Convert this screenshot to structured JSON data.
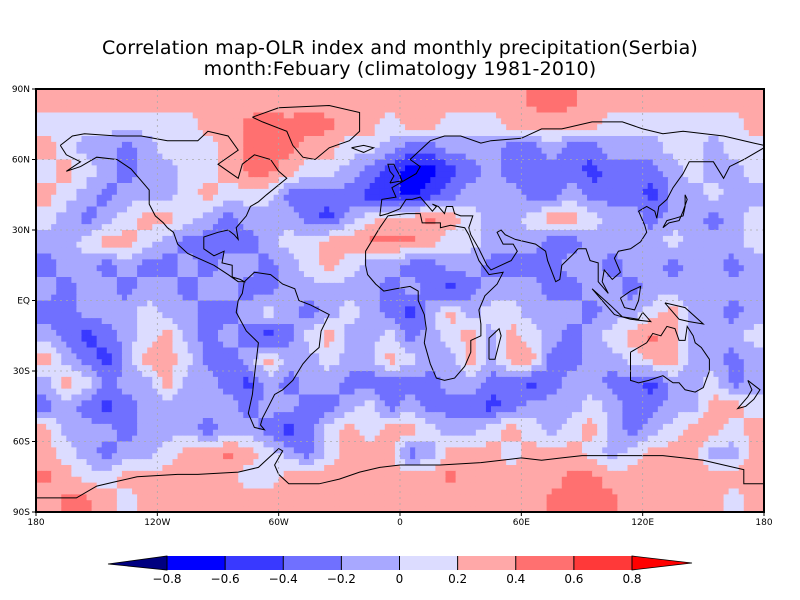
{
  "title": {
    "line1": "Correlation map-OLR index and monthly precipitation(Serbia)",
    "line2": "month:Febuary (climatology 1981-2010)"
  },
  "map": {
    "projection": "cylindrical equidistant",
    "lon_range": [
      -180,
      180
    ],
    "lat_range": [
      -90,
      90
    ],
    "y_ticks": [
      {
        "value": 90,
        "label": "90N"
      },
      {
        "value": 60,
        "label": "60N"
      },
      {
        "value": 30,
        "label": "30N"
      },
      {
        "value": 0,
        "label": "EQ"
      },
      {
        "value": -30,
        "label": "30S"
      },
      {
        "value": -60,
        "label": "60S"
      },
      {
        "value": -90,
        "label": "90S"
      }
    ],
    "x_ticks": [
      {
        "value": -180,
        "label": "180"
      },
      {
        "value": -120,
        "label": "120W"
      },
      {
        "value": -60,
        "label": "60W"
      },
      {
        "value": 0,
        "label": "0"
      },
      {
        "value": 60,
        "label": "60E"
      },
      {
        "value": 120,
        "label": "120E"
      },
      {
        "value": 180,
        "label": "180"
      }
    ],
    "gridlines": "dashed light gray",
    "field_lats": [
      85,
      75,
      65,
      55,
      45,
      35,
      25,
      15,
      5,
      -5,
      -15,
      -25,
      -35,
      -45,
      -55,
      -65,
      -75,
      -85
    ],
    "field_lons": [
      -175,
      -165,
      -155,
      -145,
      -135,
      -125,
      -115,
      -105,
      -95,
      -85,
      -75,
      -65,
      -55,
      -45,
      -35,
      -25,
      -15,
      -5,
      5,
      15,
      25,
      35,
      45,
      55,
      65,
      75,
      85,
      95,
      105,
      115,
      125,
      135,
      145,
      155,
      165,
      175
    ],
    "field_values": [
      [
        0.3,
        0.3,
        0.3,
        0.3,
        0.3,
        0.3,
        0.3,
        0.3,
        0.3,
        0.3,
        0.3,
        0.3,
        0.3,
        0.3,
        0.3,
        0.3,
        0.3,
        0.3,
        0.3,
        0.3,
        0.3,
        0.3,
        0.3,
        0.3,
        0.45,
        0.5,
        0.45,
        0.3,
        0.3,
        0.3,
        0.3,
        0.3,
        0.3,
        0.3,
        0.3,
        0.3
      ],
      [
        0.1,
        0.1,
        0.1,
        0.1,
        0.1,
        0.1,
        0.1,
        0.1,
        0.3,
        0.3,
        0.45,
        0.5,
        0.45,
        0.5,
        0.45,
        0.3,
        0.3,
        0.1,
        0.3,
        0.3,
        0.1,
        0.1,
        0.1,
        0.3,
        0.3,
        0.3,
        0.3,
        0.3,
        0.1,
        0.1,
        0.1,
        0.1,
        0.1,
        0.1,
        0.1,
        0.3
      ],
      [
        0.3,
        0.1,
        -0.1,
        -0.1,
        -0.3,
        -0.1,
        0.1,
        0.1,
        0.1,
        0.3,
        0.45,
        0.5,
        0.45,
        0.3,
        0.3,
        0.1,
        0.1,
        -0.1,
        -0.3,
        -0.3,
        -0.1,
        -0.1,
        -0.1,
        -0.3,
        -0.3,
        -0.1,
        -0.3,
        -0.3,
        -0.1,
        -0.1,
        -0.1,
        0.1,
        0.1,
        -0.1,
        0.1,
        0.1
      ],
      [
        0.1,
        0.3,
        0.1,
        -0.1,
        -0.3,
        -0.1,
        -0.1,
        0.1,
        0.1,
        0.3,
        0.45,
        0.45,
        0.3,
        0.1,
        0.1,
        -0.1,
        -0.3,
        -0.5,
        -0.7,
        -0.7,
        -0.5,
        -0.3,
        -0.1,
        -0.3,
        -0.3,
        -0.3,
        -0.3,
        -0.5,
        -0.3,
        -0.3,
        -0.3,
        -0.1,
        0.1,
        -0.1,
        -0.1,
        0.1
      ],
      [
        0.3,
        0.1,
        -0.1,
        -0.3,
        -0.1,
        -0.1,
        -0.1,
        0.1,
        0.3,
        0.1,
        0.1,
        0.1,
        -0.3,
        -0.3,
        -0.3,
        -0.3,
        -0.5,
        -0.5,
        -0.7,
        -0.5,
        -0.3,
        -0.1,
        -0.1,
        -0.1,
        -0.3,
        -0.3,
        -0.1,
        -0.3,
        -0.3,
        -0.3,
        -0.5,
        -0.1,
        -0.1,
        0.1,
        -0.1,
        -0.1
      ],
      [
        0.1,
        -0.1,
        -0.3,
        -0.1,
        0.1,
        0.3,
        0.3,
        0.1,
        -0.1,
        -0.3,
        -0.1,
        -0.1,
        -0.1,
        -0.3,
        -0.5,
        -0.1,
        0.1,
        0.3,
        0.3,
        0.45,
        0.3,
        0.1,
        -0.1,
        -0.1,
        0.1,
        0.3,
        0.3,
        0.1,
        -0.1,
        -0.1,
        -0.3,
        -0.1,
        -0.1,
        -0.3,
        -0.1,
        0.1
      ],
      [
        -0.1,
        -0.1,
        0.1,
        0.3,
        0.3,
        0.1,
        -0.1,
        -0.3,
        -0.3,
        -0.3,
        -0.3,
        -0.1,
        0.1,
        0.1,
        0.3,
        0.3,
        0.45,
        0.45,
        0.45,
        0.3,
        0.1,
        0.1,
        -0.1,
        -0.1,
        -0.1,
        -0.3,
        -0.3,
        -0.1,
        -0.1,
        -0.1,
        -0.1,
        0.1,
        -0.1,
        -0.1,
        -0.1,
        0.1
      ],
      [
        -0.3,
        -0.1,
        -0.1,
        -0.3,
        -0.1,
        -0.3,
        -0.3,
        -0.1,
        -0.3,
        -0.1,
        -0.1,
        -0.3,
        -0.1,
        0.1,
        0.3,
        0.1,
        -0.1,
        -0.1,
        -0.3,
        -0.3,
        -0.1,
        -0.1,
        -0.3,
        -0.3,
        -0.3,
        -0.3,
        -0.1,
        -0.1,
        -0.3,
        -0.1,
        -0.1,
        -0.3,
        -0.1,
        -0.1,
        -0.3,
        -0.1
      ],
      [
        -0.1,
        -0.3,
        -0.1,
        -0.1,
        -0.3,
        -0.1,
        -0.1,
        -0.3,
        -0.1,
        -0.1,
        -0.3,
        -0.3,
        -0.1,
        -0.1,
        -0.1,
        -0.1,
        -0.1,
        -0.3,
        -0.1,
        -0.3,
        -0.5,
        -0.3,
        -0.1,
        -0.1,
        -0.1,
        -0.3,
        -0.3,
        -0.1,
        -0.1,
        -0.3,
        -0.1,
        -0.1,
        -0.1,
        -0.1,
        -0.1,
        -0.1
      ],
      [
        -0.3,
        -0.3,
        -0.1,
        -0.1,
        -0.1,
        0.1,
        -0.1,
        -0.1,
        -0.3,
        -0.3,
        -0.1,
        0.1,
        -0.1,
        -0.3,
        -0.1,
        0.1,
        -0.1,
        -0.3,
        -0.5,
        -0.1,
        0.3,
        -0.1,
        0.1,
        0.1,
        -0.1,
        -0.1,
        -0.1,
        -0.3,
        -0.1,
        -0.1,
        0.1,
        0.3,
        -0.1,
        -0.1,
        -0.3,
        -0.1
      ],
      [
        -0.1,
        -0.3,
        -0.5,
        -0.3,
        -0.1,
        0.1,
        0.3,
        -0.1,
        -0.3,
        -0.1,
        -0.3,
        -0.5,
        -0.3,
        0.1,
        0.3,
        -0.1,
        -0.1,
        0.1,
        -0.3,
        -0.1,
        0.1,
        0.3,
        -0.1,
        0.3,
        0.1,
        -0.1,
        -0.3,
        -0.1,
        0.1,
        0.3,
        0.45,
        0.3,
        -0.1,
        -0.1,
        -0.1,
        0.1
      ],
      [
        0.3,
        -0.1,
        -0.3,
        -0.5,
        -0.1,
        0.3,
        0.3,
        0.1,
        -0.3,
        -0.3,
        -0.1,
        0.3,
        -0.1,
        -0.1,
        0.1,
        -0.1,
        -0.1,
        0.3,
        0.1,
        -0.1,
        -0.1,
        0.3,
        -0.1,
        0.3,
        0.3,
        -0.3,
        -0.3,
        -0.1,
        -0.1,
        0.1,
        0.3,
        0.3,
        -0.1,
        -0.1,
        -0.3,
        -0.1
      ],
      [
        -0.1,
        0.3,
        0.1,
        -0.3,
        -0.1,
        -0.1,
        0.3,
        -0.1,
        -0.1,
        -0.3,
        -0.5,
        -0.1,
        -0.3,
        -0.1,
        -0.1,
        -0.3,
        -0.3,
        -0.3,
        -0.3,
        -0.3,
        -0.1,
        -0.1,
        -0.3,
        -0.3,
        -0.5,
        -0.3,
        -0.1,
        -0.1,
        -0.3,
        -0.3,
        -0.5,
        -0.1,
        -0.1,
        0.1,
        -0.3,
        -0.1
      ],
      [
        -0.3,
        -0.1,
        -0.3,
        -0.5,
        -0.3,
        -0.1,
        -0.1,
        -0.1,
        -0.1,
        -0.1,
        -0.3,
        -0.1,
        -0.1,
        -0.3,
        -0.3,
        -0.1,
        0.1,
        -0.3,
        -0.1,
        -0.3,
        -0.3,
        -0.3,
        -0.5,
        -0.3,
        -0.1,
        -0.1,
        -0.1,
        0.1,
        -0.1,
        -0.3,
        -0.3,
        -0.1,
        -0.1,
        0.3,
        0.3,
        0.1
      ],
      [
        0.3,
        -0.1,
        -0.1,
        -0.1,
        -0.3,
        -0.1,
        -0.1,
        -0.1,
        -0.3,
        -0.1,
        -0.1,
        -0.3,
        -0.5,
        -0.3,
        0.1,
        0.3,
        0.1,
        0.3,
        0.3,
        0.1,
        -0.1,
        -0.1,
        0.1,
        0.3,
        0.1,
        -0.1,
        0.1,
        0.3,
        -0.1,
        -0.3,
        -0.1,
        0.1,
        0.3,
        0.3,
        0.1,
        0.3
      ],
      [
        0.3,
        0.1,
        -0.1,
        -0.3,
        -0.1,
        -0.1,
        0.1,
        0.3,
        0.3,
        0.45,
        0.3,
        0.1,
        -0.1,
        -0.3,
        0.1,
        0.3,
        0.3,
        0.3,
        -0.3,
        -0.1,
        0.3,
        0.3,
        0.3,
        0.1,
        0.3,
        0.3,
        0.3,
        0.1,
        -0.1,
        0.1,
        0.3,
        0.3,
        0.3,
        -0.1,
        -0.1,
        0.3
      ],
      [
        0.45,
        0.3,
        0.1,
        0.1,
        0.3,
        0.3,
        0.3,
        0.3,
        0.3,
        0.3,
        0.1,
        0.1,
        0.3,
        0.3,
        0.3,
        0.3,
        0.3,
        0.3,
        0.3,
        0.3,
        0.45,
        0.3,
        0.3,
        0.3,
        0.3,
        0.3,
        0.45,
        0.45,
        0.3,
        0.3,
        0.3,
        0.3,
        0.3,
        0.3,
        0.3,
        0.3
      ],
      [
        0.3,
        0.45,
        0.45,
        0.3,
        0.1,
        0.3,
        0.3,
        0.3,
        0.3,
        0.3,
        0.3,
        0.3,
        0.3,
        0.3,
        0.3,
        0.3,
        0.3,
        0.3,
        0.3,
        0.3,
        0.3,
        0.3,
        0.3,
        0.3,
        0.3,
        0.45,
        0.45,
        0.45,
        0.45,
        0.3,
        0.3,
        0.3,
        0.3,
        0.3,
        0.1,
        0.3
      ]
    ]
  },
  "colorbar": {
    "levels": [
      -0.8,
      -0.6,
      -0.4,
      -0.2,
      0,
      0.2,
      0.4,
      0.6,
      0.8
    ],
    "labels": [
      "-0.8",
      "-0.6",
      "-0.4",
      "-0.2",
      "0",
      "0.2",
      "0.4",
      "0.6",
      "0.8"
    ],
    "colors": [
      "#000080",
      "#0000ff",
      "#3939ff",
      "#7070ff",
      "#a8a8ff",
      "#dcdcff",
      "#ffa8a8",
      "#ff7070",
      "#ff3939",
      "#ff0000"
    ],
    "extend": "both"
  }
}
